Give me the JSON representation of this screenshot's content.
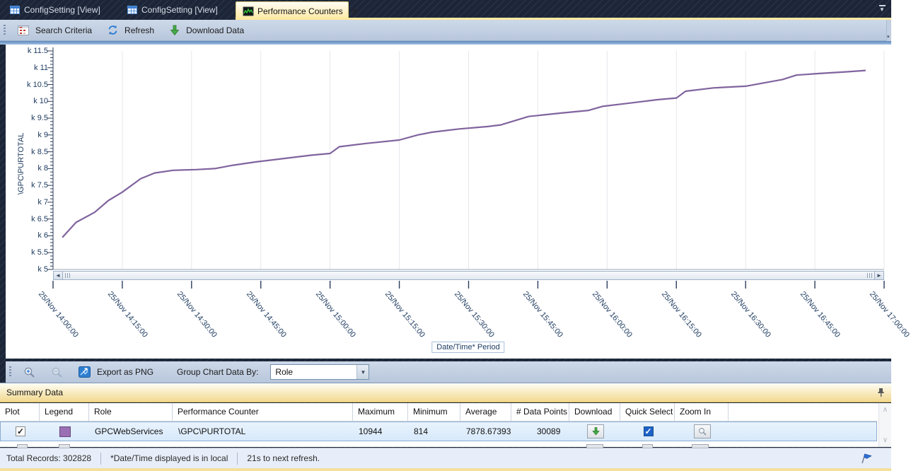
{
  "tabs": [
    {
      "label": "ConfigSetting [View]",
      "active": false
    },
    {
      "label": "ConfigSetting [View]",
      "active": false
    },
    {
      "label": "Performance Counters",
      "active": true
    }
  ],
  "toolbar": {
    "search_criteria_label": "Search Criteria",
    "refresh_label": "Refresh",
    "download_data_label": "Download Data"
  },
  "chart_data": {
    "type": "line",
    "ylabel": "\\GPC\\PURTOTAL",
    "xlabel": "Date/Time* Period",
    "ylim": [
      5,
      11.5
    ],
    "y_tick_step": 0.5,
    "y_tick_prefix": "k ",
    "grid": "vertical-only",
    "legend": "none",
    "x_minutes_range": [
      0,
      180
    ],
    "categories": [
      "25/Nov 14:00:00",
      "25/Nov 14:15:00",
      "25/Nov 14:30:00",
      "25/Nov 14:45:00",
      "25/Nov 15:00:00",
      "25/Nov 15:15:00",
      "25/Nov 15:30:00",
      "25/Nov 15:45:00",
      "25/Nov 16:00:00",
      "25/Nov 16:15:00",
      "25/Nov 16:30:00",
      "25/Nov 16:45:00",
      "25/Nov 17:00:00"
    ],
    "series": [
      {
        "name": "GPCWebServices \\GPC\\PURTOTAL",
        "color": "#80649e",
        "x_minutes": [
          2,
          5,
          9,
          12,
          15,
          19,
          22,
          26,
          31,
          35,
          39,
          44,
          50,
          56,
          60,
          62,
          68,
          75,
          79,
          82,
          88,
          94,
          97,
          103,
          110,
          116,
          119,
          125,
          131,
          135,
          137,
          143,
          150,
          154,
          158,
          161,
          166,
          172,
          176
        ],
        "values_k": [
          5.95,
          6.4,
          6.7,
          7.05,
          7.3,
          7.7,
          7.87,
          7.95,
          7.97,
          8.0,
          8.1,
          8.2,
          8.3,
          8.4,
          8.45,
          8.65,
          8.75,
          8.85,
          9.0,
          9.08,
          9.18,
          9.25,
          9.3,
          9.55,
          9.65,
          9.73,
          9.85,
          9.95,
          10.05,
          10.1,
          10.3,
          10.4,
          10.45,
          10.55,
          10.65,
          10.78,
          10.83,
          10.88,
          10.92
        ]
      }
    ]
  },
  "chart_toolbar": {
    "export_label": "Export as PNG",
    "group_by_label": "Group Chart Data By:",
    "group_by_value": "Role"
  },
  "summary_panel": {
    "title": "Summary Data",
    "columns": [
      "Plot",
      "Legend",
      "Role",
      "Performance Counter",
      "Maximum",
      "Minimum",
      "Average",
      "# Data Points",
      "Download",
      "Quick Select",
      "Zoom In"
    ],
    "rows": [
      {
        "plot_checked": true,
        "legend_color": "#9b6fb3",
        "role": "GPCWebServices",
        "performance_counter": "\\GPC\\PURTOTAL",
        "maximum": "10944",
        "minimum": "814",
        "average": "7878.67393",
        "data_points": "30089",
        "quick_select_checked": true
      }
    ]
  },
  "status_bar": {
    "total_records": "Total Records: 302828",
    "timezone_note": "*Date/Time displayed is in local",
    "refresh_note": "21s to next refresh."
  },
  "icons": {
    "close": "✕",
    "check": "✓",
    "dropdown_arrow": "▼",
    "scroll_left": "◄",
    "scroll_right": "►",
    "scroll_up": "∧",
    "scroll_down": "∨",
    "overflow_arrow": "▾"
  },
  "colors": {
    "series_line": "#80649e",
    "active_tab": "#ffe9a0",
    "summary_bar": "#f2d98e",
    "selected_row": "#d7e9fb"
  }
}
